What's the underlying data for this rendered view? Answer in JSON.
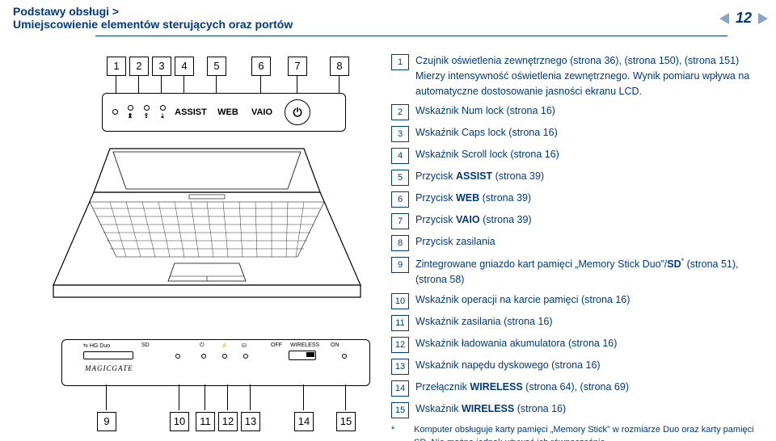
{
  "breadcrumb": {
    "line1": "Podstawy obsługi",
    "sep": ">",
    "line2": "Umiejscowienie elementów sterujących oraz portów"
  },
  "page_number": "12",
  "colors": {
    "text": "#003a7a",
    "arrow": "#8aa5c7",
    "black": "#000000",
    "bg": "#ffffff"
  },
  "top_callouts": [
    "1",
    "2",
    "3",
    "4",
    "5",
    "6",
    "7",
    "8"
  ],
  "buttons_panel": {
    "assist": "ASSIST",
    "web": "WEB",
    "vaio": "VAIO",
    "power_glyph": "⏻"
  },
  "front_panel": {
    "hgduo": "HG Duo",
    "sd": "SD",
    "off": "OFF",
    "wireless": "WIRELESS",
    "on": "ON",
    "magicgate": "MAGICGATE",
    "arrows_glyph": "⇆"
  },
  "bottom_callouts": [
    "9",
    "10",
    "11",
    "12",
    "13",
    "14",
    "15"
  ],
  "list_items": [
    {
      "n": "1",
      "html": "Czujnik oświetlenia zewnętrznego (strona 36), (strona 150), (strona 151)<br>Mierzy intensywność oświetlenia zewnętrznego. Wynik pomiaru wpływa na automatyczne dostosowanie jasności ekranu LCD."
    },
    {
      "n": "2",
      "html": "Wskaźnik Num lock (strona 16)"
    },
    {
      "n": "3",
      "html": "Wskaźnik Caps lock (strona 16)"
    },
    {
      "n": "4",
      "html": "Wskaźnik Scroll lock (strona 16)"
    },
    {
      "n": "5",
      "html": "Przycisk <span class=\"bold\">ASSIST</span> (strona 39)"
    },
    {
      "n": "6",
      "html": "Przycisk <span class=\"bold\">WEB</span> (strona 39)"
    },
    {
      "n": "7",
      "html": "Przycisk <span class=\"bold\">VAIO</span> (strona 39)"
    },
    {
      "n": "8",
      "html": "Przycisk zasilania"
    },
    {
      "n": "9",
      "html": "Zintegrowane gniazdo kart pamięci „Memory Stick Duo”/<span class=\"bold\">SD</span><sup>*</sup> (strona 51), (strona 58)"
    },
    {
      "n": "10",
      "html": "Wskaźnik operacji na karcie pamięci (strona 16)"
    },
    {
      "n": "11",
      "html": "Wskaźnik zasilania (strona 16)"
    },
    {
      "n": "12",
      "html": "Wskaźnik ładowania akumulatora (strona 16)"
    },
    {
      "n": "13",
      "html": "Wskaźnik napędu dyskowego (strona 16)"
    },
    {
      "n": "14",
      "html": "Przełącznik <span class=\"bold\">WIRELESS</span> (strona 64), (strona 69)"
    },
    {
      "n": "15",
      "html": "Wskaźnik <span class=\"bold\">WIRELESS</span> (strona 16)"
    }
  ],
  "footnote": {
    "mark": "*",
    "text": "Komputer obsługuje karty pamięci „Memory Stick” w rozmiarze Duo oraz karty pamięci SD. Nie można jednak używać ich równocześnie."
  }
}
